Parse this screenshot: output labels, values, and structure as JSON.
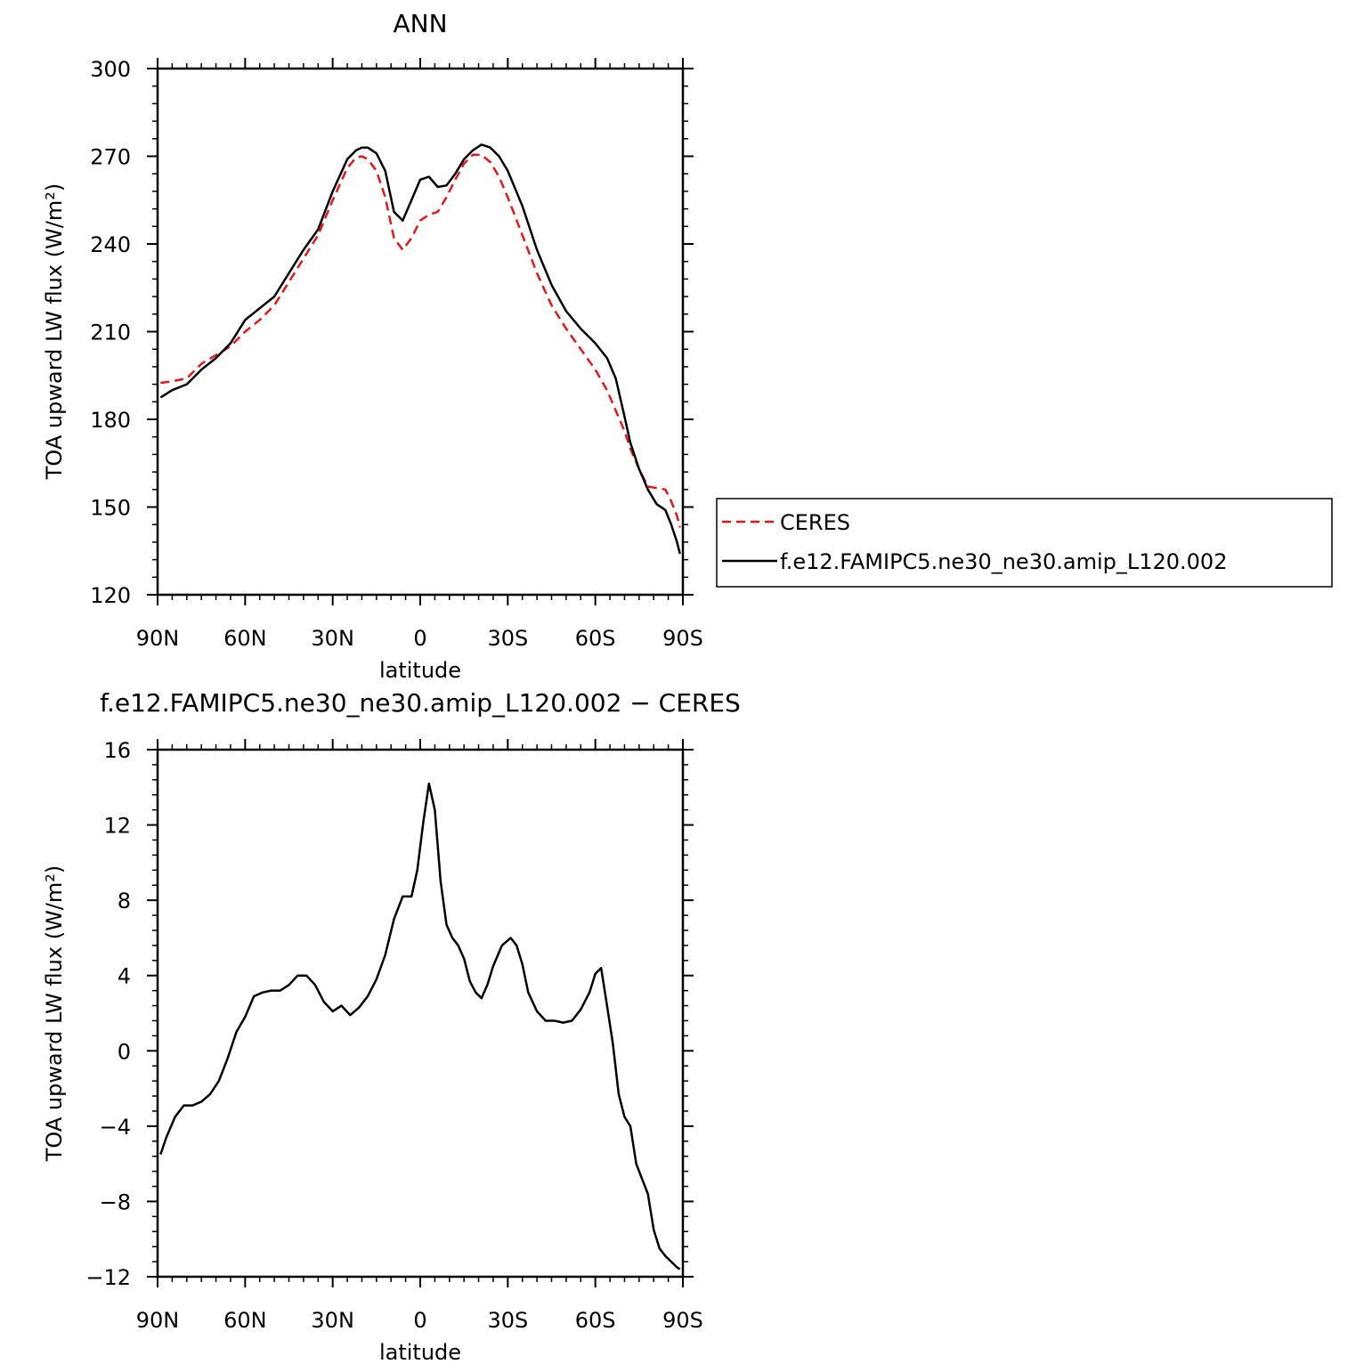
{
  "colors": {
    "ceres": "#e8161b",
    "model": "#000000"
  },
  "chart_data": [
    {
      "type": "line",
      "title": "ANN",
      "xlabel": "latitude",
      "ylabel": "TOA upward LW flux (W/m²)",
      "xlim": [
        90,
        -90
      ],
      "ylim": [
        120,
        300
      ],
      "yticks": [
        120,
        150,
        180,
        210,
        240,
        270,
        300
      ],
      "xticks": [
        {
          "value": 90,
          "label": "90N"
        },
        {
          "value": 60,
          "label": "60N"
        },
        {
          "value": 30,
          "label": "30N"
        },
        {
          "value": 0,
          "label": "0"
        },
        {
          "value": -30,
          "label": "30S"
        },
        {
          "value": -60,
          "label": "60S"
        },
        {
          "value": -90,
          "label": "90S"
        }
      ],
      "legend": "right",
      "series": [
        {
          "name": "CERES",
          "style": "dashed",
          "color": "#e8161b",
          "x": [
            89,
            85,
            80,
            75,
            70,
            65,
            60,
            55,
            50,
            45,
            40,
            35,
            30,
            25,
            22,
            20,
            18,
            15,
            12,
            9,
            6,
            3,
            0,
            -3,
            -6,
            -9,
            -12,
            -15,
            -18,
            -21,
            -24,
            -27,
            -30,
            -35,
            -40,
            -45,
            -50,
            -55,
            -60,
            -64,
            -67,
            -70,
            -72,
            -75,
            -78,
            -81,
            -84,
            -86,
            -88,
            -89
          ],
          "y": [
            192.5,
            193,
            194,
            199,
            202,
            205,
            210,
            214,
            219,
            227,
            235,
            243,
            255,
            266,
            269.5,
            270,
            269,
            265,
            256,
            242,
            238,
            242,
            248,
            250,
            251,
            256,
            262,
            267.5,
            270.5,
            270.5,
            268,
            263,
            256,
            243,
            230,
            219,
            211,
            204,
            197,
            190,
            183,
            176,
            170,
            163,
            157,
            156.5,
            156,
            152,
            147,
            143
          ]
        },
        {
          "name": "f.e12.FAMIPC5.ne30_ne30.amip_L120.002",
          "style": "solid",
          "color": "#000000",
          "x": [
            89,
            85,
            80,
            75,
            70,
            65,
            60,
            55,
            50,
            45,
            40,
            35,
            30,
            25,
            22,
            20,
            18,
            15,
            12,
            9,
            6,
            3,
            0,
            -3,
            -6,
            -9,
            -12,
            -15,
            -18,
            -21,
            -24,
            -27,
            -30,
            -35,
            -40,
            -45,
            -50,
            -55,
            -60,
            -64,
            -67,
            -70,
            -72,
            -75,
            -78,
            -81,
            -84,
            -86,
            -88,
            -89
          ],
          "y": [
            187.5,
            190,
            192,
            197,
            201,
            206,
            214,
            218,
            222,
            230,
            238,
            245,
            258,
            269,
            272,
            273,
            273,
            271,
            265,
            251,
            248,
            255,
            262,
            263,
            259.5,
            260,
            264,
            269,
            272,
            274,
            273,
            270,
            265,
            253,
            238,
            226,
            217,
            211,
            206,
            201,
            194,
            181,
            172,
            163,
            156,
            151,
            149,
            144,
            138,
            134
          ]
        }
      ]
    },
    {
      "type": "line",
      "title": "f.e12.FAMIPC5.ne30_ne30.amip_L120.002 − CERES",
      "xlabel": "latitude",
      "ylabel": "TOA upward LW flux (W/m²)",
      "xlim": [
        90,
        -90
      ],
      "ylim": [
        -12,
        16
      ],
      "yticks": [
        -12,
        -8,
        -4,
        0,
        4,
        8,
        12,
        16
      ],
      "xticks": [
        {
          "value": 90,
          "label": "90N"
        },
        {
          "value": 60,
          "label": "60N"
        },
        {
          "value": 30,
          "label": "30N"
        },
        {
          "value": 0,
          "label": "0"
        },
        {
          "value": -30,
          "label": "30S"
        },
        {
          "value": -60,
          "label": "60S"
        },
        {
          "value": -90,
          "label": "90S"
        }
      ],
      "series": [
        {
          "style": "solid",
          "color": "#000000",
          "x": [
            89,
            87,
            84,
            81,
            78,
            75,
            72,
            69,
            66,
            63,
            60,
            57,
            54,
            51,
            48,
            45,
            42,
            39,
            36,
            33,
            30,
            27,
            24,
            21,
            18,
            15,
            12,
            9,
            6,
            3,
            1,
            -1,
            -3,
            -5,
            -7,
            -9,
            -11,
            -13,
            -15,
            -17,
            -19,
            -21,
            -23,
            -25,
            -28,
            -31,
            -33,
            -35,
            -37,
            -40,
            -43,
            -46,
            -49,
            -52,
            -55,
            -58,
            -60,
            -62,
            -64,
            -66,
            -68,
            -70,
            -72,
            -74,
            -76,
            -78,
            -80,
            -82,
            -84,
            -86,
            -88,
            -89
          ],
          "y": [
            -5.5,
            -4.6,
            -3.5,
            -2.9,
            -2.9,
            -2.7,
            -2.3,
            -1.6,
            -0.4,
            1.0,
            1.8,
            2.9,
            3.1,
            3.2,
            3.2,
            3.5,
            4.0,
            4.0,
            3.5,
            2.6,
            2.1,
            2.4,
            1.9,
            2.3,
            2.9,
            3.8,
            5.1,
            7.0,
            8.2,
            8.2,
            9.6,
            12.1,
            14.2,
            12.8,
            9.0,
            6.7,
            6.0,
            5.6,
            4.9,
            3.7,
            3.1,
            2.8,
            3.5,
            4.5,
            5.6,
            6.0,
            5.6,
            4.6,
            3.1,
            2.1,
            1.6,
            1.6,
            1.5,
            1.6,
            2.2,
            3.1,
            4.1,
            4.4,
            2.4,
            0.4,
            -2.3,
            -3.5,
            -4.0,
            -6.0,
            -6.8,
            -7.6,
            -9.5,
            -10.5,
            -10.9,
            -11.2,
            -11.5,
            -11.6
          ]
        }
      ]
    }
  ]
}
